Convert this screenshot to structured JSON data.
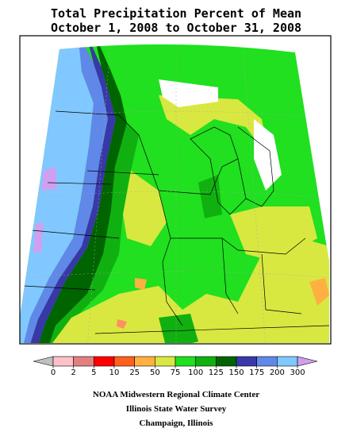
{
  "title": [
    "Total Precipitation Percent of Mean",
    "October 1, 2008 to October 31, 2008"
  ],
  "legend": {
    "ticks": [
      0,
      2,
      5,
      10,
      25,
      50,
      75,
      100,
      125,
      150,
      175,
      200,
      300
    ],
    "colors": [
      "#c0c0c0",
      "#ffc0c8",
      "#e08080",
      "#ff0000",
      "#ff6020",
      "#ffb040",
      "#d8e840",
      "#20e020",
      "#10b010",
      "#006400",
      "#3838a8",
      "#6088e8",
      "#80c8ff",
      "#d0a0f0"
    ]
  },
  "footer": [
    "NOAA Midwestern Regional Climate Center",
    "Illinois State Water Survey",
    "Champaign, Illinois"
  ]
}
